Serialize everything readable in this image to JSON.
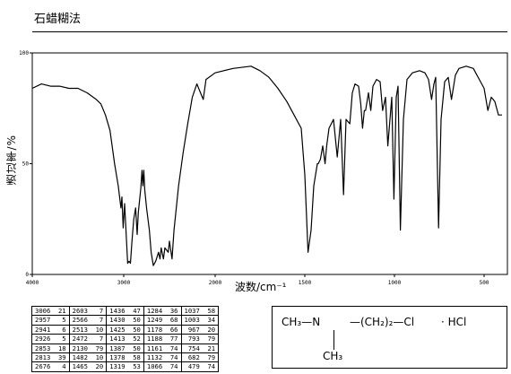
{
  "header": {
    "title": "石蜡糊法"
  },
  "chart_data": {
    "type": "line",
    "title": "",
    "xlabel": "波数/cm⁻¹",
    "ylabel": "透过率/%",
    "xlim": [
      4000,
      400
    ],
    "ylim": [
      0,
      100
    ],
    "xticks": [
      "4000",
      "3000",
      "2000",
      "1500",
      "1000",
      "500"
    ],
    "yticks": [
      "0",
      "50",
      "100"
    ],
    "grid": false,
    "legend": "none",
    "series": [
      {
        "points": [
          [
            4000,
            84
          ],
          [
            3900,
            86
          ],
          [
            3800,
            85
          ],
          [
            3700,
            85
          ],
          [
            3600,
            84
          ],
          [
            3500,
            84
          ],
          [
            3400,
            82
          ],
          [
            3300,
            79
          ],
          [
            3250,
            77
          ],
          [
            3200,
            72
          ],
          [
            3150,
            65
          ],
          [
            3100,
            50
          ],
          [
            3060,
            40
          ],
          [
            3030,
            30
          ],
          [
            3020,
            35
          ],
          [
            3006,
            21
          ],
          [
            2990,
            32
          ],
          [
            2957,
            5
          ],
          [
            2941,
            6
          ],
          [
            2926,
            5
          ],
          [
            2910,
            15
          ],
          [
            2890,
            25
          ],
          [
            2870,
            30
          ],
          [
            2853,
            18
          ],
          [
            2840,
            28
          ],
          [
            2813,
            39
          ],
          [
            2800,
            47
          ],
          [
            2790,
            40
          ],
          [
            2780,
            47
          ],
          [
            2770,
            38
          ],
          [
            2750,
            30
          ],
          [
            2720,
            20
          ],
          [
            2700,
            10
          ],
          [
            2676,
            4
          ],
          [
            2650,
            6
          ],
          [
            2620,
            10
          ],
          [
            2603,
            7
          ],
          [
            2590,
            12
          ],
          [
            2566,
            7
          ],
          [
            2550,
            12
          ],
          [
            2513,
            10
          ],
          [
            2500,
            15
          ],
          [
            2472,
            7
          ],
          [
            2450,
            20
          ],
          [
            2400,
            40
          ],
          [
            2350,
            55
          ],
          [
            2300,
            68
          ],
          [
            2250,
            80
          ],
          [
            2200,
            86
          ],
          [
            2130,
            79
          ],
          [
            2100,
            88
          ],
          [
            2000,
            91
          ],
          [
            1900,
            93
          ],
          [
            1800,
            94
          ],
          [
            1750,
            92
          ],
          [
            1700,
            89
          ],
          [
            1650,
            84
          ],
          [
            1600,
            78
          ],
          [
            1560,
            72
          ],
          [
            1520,
            66
          ],
          [
            1500,
            45
          ],
          [
            1482,
            10
          ],
          [
            1465,
            20
          ],
          [
            1450,
            40
          ],
          [
            1436,
            47
          ],
          [
            1430,
            50
          ],
          [
            1425,
            50
          ],
          [
            1413,
            52
          ],
          [
            1400,
            58
          ],
          [
            1387,
            50
          ],
          [
            1378,
            58
          ],
          [
            1365,
            66
          ],
          [
            1340,
            70
          ],
          [
            1319,
            53
          ],
          [
            1300,
            70
          ],
          [
            1284,
            36
          ],
          [
            1270,
            70
          ],
          [
            1249,
            68
          ],
          [
            1235,
            82
          ],
          [
            1220,
            86
          ],
          [
            1200,
            85
          ],
          [
            1188,
            77
          ],
          [
            1178,
            66
          ],
          [
            1168,
            74
          ],
          [
            1161,
            74
          ],
          [
            1145,
            82
          ],
          [
            1132,
            74
          ],
          [
            1120,
            85
          ],
          [
            1100,
            88
          ],
          [
            1080,
            87
          ],
          [
            1066,
            74
          ],
          [
            1050,
            80
          ],
          [
            1037,
            58
          ],
          [
            1025,
            70
          ],
          [
            1015,
            80
          ],
          [
            1003,
            34
          ],
          [
            990,
            80
          ],
          [
            980,
            85
          ],
          [
            967,
            20
          ],
          [
            950,
            70
          ],
          [
            930,
            88
          ],
          [
            900,
            91
          ],
          [
            860,
            92
          ],
          [
            830,
            91
          ],
          [
            810,
            88
          ],
          [
            793,
            79
          ],
          [
            780,
            86
          ],
          [
            770,
            89
          ],
          [
            754,
            21
          ],
          [
            740,
            70
          ],
          [
            720,
            87
          ],
          [
            700,
            89
          ],
          [
            682,
            79
          ],
          [
            660,
            90
          ],
          [
            640,
            93
          ],
          [
            600,
            94
          ],
          [
            560,
            93
          ],
          [
            520,
            87
          ],
          [
            500,
            84
          ],
          [
            479,
            74
          ],
          [
            460,
            80
          ],
          [
            440,
            78
          ],
          [
            420,
            72
          ],
          [
            400,
            72
          ]
        ]
      }
    ]
  },
  "peak_table": {
    "columns": [
      [
        [
          "3006",
          "21"
        ],
        [
          "2957",
          "5"
        ],
        [
          "2941",
          "6"
        ],
        [
          "2926",
          "5"
        ],
        [
          "2853",
          "18"
        ],
        [
          "2813",
          "39"
        ],
        [
          "2676",
          "4"
        ]
      ],
      [
        [
          "2603",
          "7"
        ],
        [
          "2566",
          "7"
        ],
        [
          "2513",
          "10"
        ],
        [
          "2472",
          "7"
        ],
        [
          "2130",
          "79"
        ],
        [
          "1482",
          "10"
        ],
        [
          "1465",
          "20"
        ]
      ],
      [
        [
          "1436",
          "47"
        ],
        [
          "1430",
          "50"
        ],
        [
          "1425",
          "50"
        ],
        [
          "1413",
          "52"
        ],
        [
          "1387",
          "50"
        ],
        [
          "1378",
          "58"
        ],
        [
          "1319",
          "53"
        ]
      ],
      [
        [
          "1284",
          "36"
        ],
        [
          "1249",
          "68"
        ],
        [
          "1178",
          "66"
        ],
        [
          "1188",
          "77"
        ],
        [
          "1161",
          "74"
        ],
        [
          "1132",
          "74"
        ],
        [
          "1066",
          "74"
        ]
      ],
      [
        [
          "1037",
          "58"
        ],
        [
          "1003",
          "34"
        ],
        [
          "967",
          "20"
        ],
        [
          "793",
          "79"
        ],
        [
          "754",
          "21"
        ],
        [
          "682",
          "79"
        ],
        [
          "479",
          "74"
        ]
      ]
    ]
  },
  "structure": {
    "left_group": "CH₃—N",
    "chain": "—(CH₂)₂—Cl",
    "salt": "· HCl",
    "methyl": "CH₃"
  }
}
